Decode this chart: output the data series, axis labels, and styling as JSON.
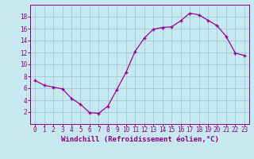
{
  "x": [
    0,
    1,
    2,
    3,
    4,
    5,
    6,
    7,
    8,
    9,
    10,
    11,
    12,
    13,
    14,
    15,
    16,
    17,
    18,
    19,
    20,
    21,
    22,
    23
  ],
  "y": [
    7.3,
    6.5,
    6.2,
    5.9,
    4.3,
    3.3,
    1.9,
    1.8,
    3.0,
    5.8,
    8.7,
    12.2,
    14.4,
    15.9,
    16.2,
    16.3,
    17.3,
    18.6,
    18.3,
    17.4,
    16.5,
    14.7,
    11.9,
    11.5
  ],
  "line_color": "#990099",
  "marker": "+",
  "bg_color": "#c8e8f0",
  "grid_color": "#a0c8d8",
  "xlabel": "Windchill (Refroidissement éolien,°C)",
  "xlabel_color": "#880088",
  "tick_color": "#880088",
  "spine_color": "#880088",
  "ylim": [
    0,
    20
  ],
  "xlim": [
    -0.5,
    23.5
  ],
  "yticks": [
    2,
    4,
    6,
    8,
    10,
    12,
    14,
    16,
    18
  ],
  "xticks": [
    0,
    1,
    2,
    3,
    4,
    5,
    6,
    7,
    8,
    9,
    10,
    11,
    12,
    13,
    14,
    15,
    16,
    17,
    18,
    19,
    20,
    21,
    22,
    23
  ],
  "tick_fontsize": 5.5,
  "xlabel_fontsize": 6.5,
  "figsize": [
    3.2,
    2.0
  ],
  "dpi": 100
}
